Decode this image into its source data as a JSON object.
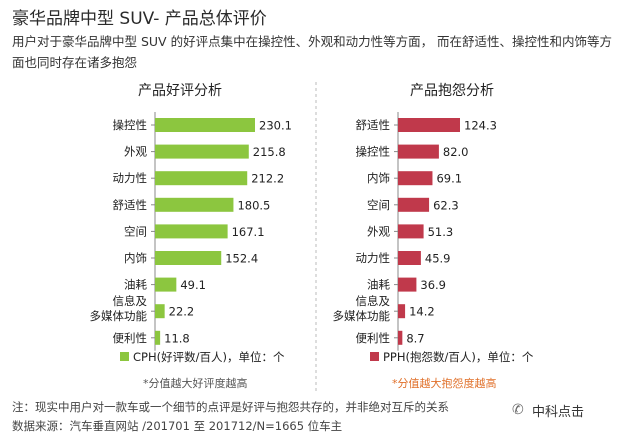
{
  "title": "豪华品牌中型 SUV- 产品总体评价",
  "subtitle": "用户对于豪华品牌中型 SUV 的好评点集中在操控性、外观和动力性等方面， 而在舒适性、操控性和内饰等方面也同时存在诸多抱怨",
  "chart_data": [
    {
      "type": "bar",
      "orientation": "horizontal",
      "title": "产品好评分析",
      "categories": [
        "操控性",
        "外观",
        "动力性",
        "舒适性",
        "空间",
        "内饰",
        "油耗",
        "信息及\n多媒体功能",
        "便利性"
      ],
      "values": [
        230.1,
        215.8,
        212.2,
        180.5,
        167.1,
        152.4,
        49.1,
        22.2,
        11.8
      ],
      "value_labels": [
        "230.1",
        "215.8",
        "212.2",
        "180.5",
        "167.1",
        "152.4",
        "49.1",
        "22.2",
        "11.8"
      ],
      "legend": "CPH(好评数/百人)，单位：个",
      "footnote": "*分值越大好评度越高",
      "color": "#8cc63f",
      "footnote_color": "#555555",
      "xlim": [
        0,
        230.1
      ]
    },
    {
      "type": "bar",
      "orientation": "horizontal",
      "title": "产品抱怨分析",
      "categories": [
        "舒适性",
        "操控性",
        "内饰",
        "空间",
        "外观",
        "动力性",
        "油耗",
        "信息及\n多媒体功能",
        "便利性"
      ],
      "values": [
        124.3,
        82.0,
        69.1,
        62.3,
        51.3,
        45.9,
        36.9,
        14.2,
        8.7
      ],
      "value_labels": [
        "124.3",
        "82.0",
        "69.1",
        "62.3",
        "51.3",
        "45.9",
        "36.9",
        "14.2",
        "8.7"
      ],
      "legend": "PPH(抱怨数/百人)，单位：个",
      "footnote": "*分值越大抱怨度越高",
      "color": "#c0394b",
      "footnote_color": "#e0702a",
      "xlim": [
        0,
        124.3
      ]
    }
  ],
  "notes": {
    "line1": "注：现实中用户对一款车或一个细节的点评是好评与抱怨共存的，并非绝对互斥的关系",
    "line2": "数据来源：汽车垂直网站 /201701 至 201712/N=1665 位车主"
  },
  "watermark": "中科点击",
  "watermark_icon": "wechat-icon"
}
